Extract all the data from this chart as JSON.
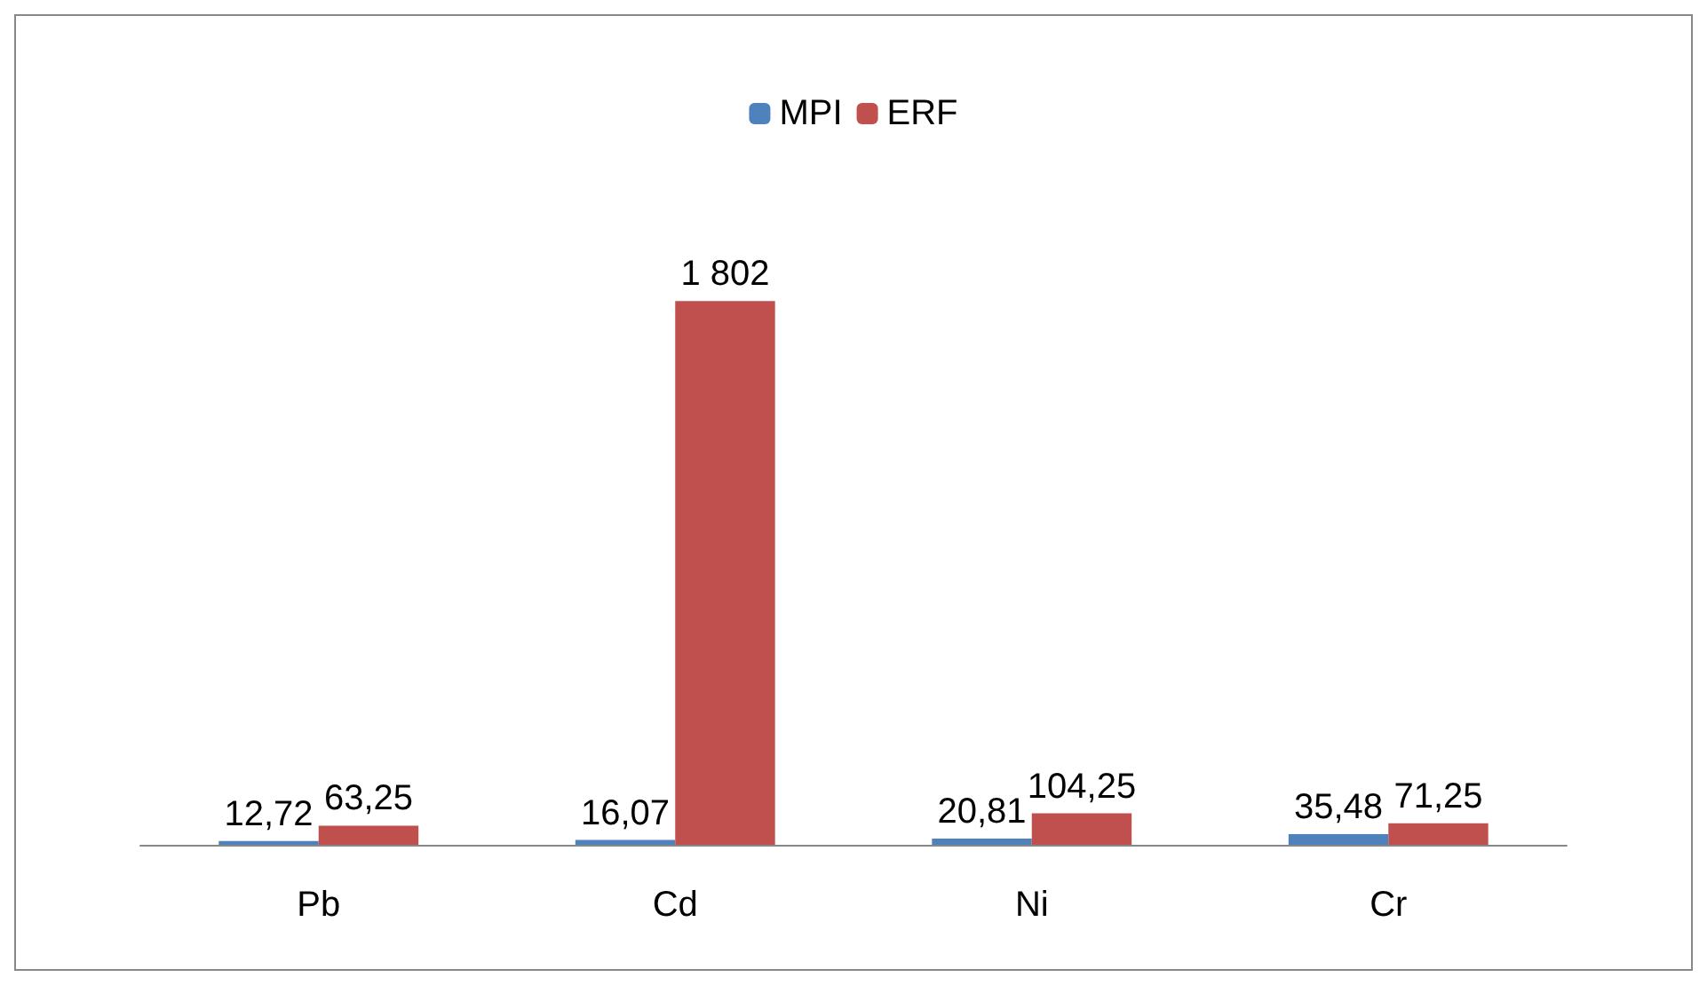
{
  "chart_data": {
    "type": "bar",
    "categories": [
      "Pb",
      "Cd",
      "Ni",
      "Cr"
    ],
    "series": [
      {
        "name": "MPI",
        "color": "#4f81bd",
        "values": [
          12.72,
          16.07,
          20.81,
          35.48
        ],
        "value_labels": [
          "12,72",
          "16,07",
          "20,81",
          "35,48"
        ]
      },
      {
        "name": "ERF",
        "color": "#c0504d",
        "values": [
          63.25,
          1802,
          104.25,
          71.25
        ],
        "value_labels": [
          "63,25",
          "1 802",
          "104,25",
          "71,25"
        ]
      }
    ],
    "legend": "top"
  }
}
